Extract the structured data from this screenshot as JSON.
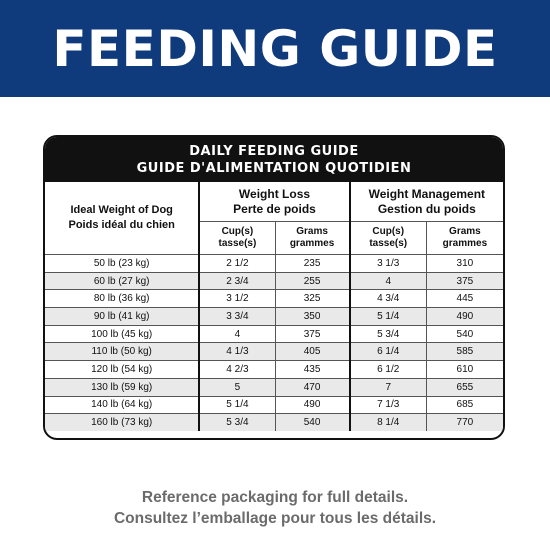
{
  "banner": {
    "title": "FEEDING GUIDE",
    "color": "#0f3b7d"
  },
  "card": {
    "title_en": "DAILY FEEDING GUIDE",
    "title_fr": "GUIDE D'ALIMENTATION QUOTIDIEN"
  },
  "table": {
    "weight_header_en": "Ideal Weight of Dog",
    "weight_header_fr": "Poids idéal du chien",
    "loss_en": "Weight Loss",
    "loss_fr": "Perte de poids",
    "mgmt_en": "Weight Management",
    "mgmt_fr": "Gestion du poids",
    "cups_en": "Cup(s)",
    "cups_fr": "tasse(s)",
    "grams_en": "Grams",
    "grams_fr": "grammes",
    "rows": [
      {
        "weight": "50 lb (23 kg)",
        "loss_cups": "2 1/2",
        "loss_grams": "235",
        "mgmt_cups": "3 1/3",
        "mgmt_grams": "310"
      },
      {
        "weight": "60 lb (27 kg)",
        "loss_cups": "2 3/4",
        "loss_grams": "255",
        "mgmt_cups": "4",
        "mgmt_grams": "375"
      },
      {
        "weight": "80 lb (36 kg)",
        "loss_cups": "3 1/2",
        "loss_grams": "325",
        "mgmt_cups": "4 3/4",
        "mgmt_grams": "445"
      },
      {
        "weight": "90 lb (41 kg)",
        "loss_cups": "3 3/4",
        "loss_grams": "350",
        "mgmt_cups": "5 1/4",
        "mgmt_grams": "490"
      },
      {
        "weight": "100 lb (45 kg)",
        "loss_cups": "4",
        "loss_grams": "375",
        "mgmt_cups": "5 3/4",
        "mgmt_grams": "540"
      },
      {
        "weight": "110 lb (50 kg)",
        "loss_cups": "4 1/3",
        "loss_grams": "405",
        "mgmt_cups": "6 1/4",
        "mgmt_grams": "585"
      },
      {
        "weight": "120 lb (54 kg)",
        "loss_cups": "4 2/3",
        "loss_grams": "435",
        "mgmt_cups": "6 1/2",
        "mgmt_grams": "610"
      },
      {
        "weight": "130 lb (59 kg)",
        "loss_cups": "5",
        "loss_grams": "470",
        "mgmt_cups": "7",
        "mgmt_grams": "655"
      },
      {
        "weight": "140 lb (64 kg)",
        "loss_cups": "5 1/4",
        "loss_grams": "490",
        "mgmt_cups": "7 1/3",
        "mgmt_grams": "685"
      },
      {
        "weight": "160 lb (73 kg)",
        "loss_cups": "5 3/4",
        "loss_grams": "540",
        "mgmt_cups": "8 1/4",
        "mgmt_grams": "770"
      }
    ]
  },
  "footer": {
    "line_en": "Reference packaging for full details.",
    "line_fr": "Consultez l’emballage pour tous les détails."
  }
}
